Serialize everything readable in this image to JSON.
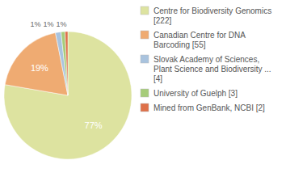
{
  "chart_data": {
    "type": "pie",
    "categories": [
      "Centre for Biodiversity Genomics [222]",
      "Canadian Centre for DNA Barcoding [55]",
      "Slovak Academy of Sciences, Plant Science and Biodiversity ... [4]",
      "University of Guelph [3]",
      "Mined from GenBank, NCBI [2]"
    ],
    "values": [
      77,
      19,
      1.4,
      1,
      0.7
    ],
    "value_labels": [
      "77%",
      "19%",
      "1%",
      "1%",
      "1%"
    ],
    "colors": [
      "#dde3a0",
      "#efab72",
      "#a9c3de",
      "#a6cc7a",
      "#de7049"
    ],
    "data_labels": true,
    "legend": "upper right"
  }
}
